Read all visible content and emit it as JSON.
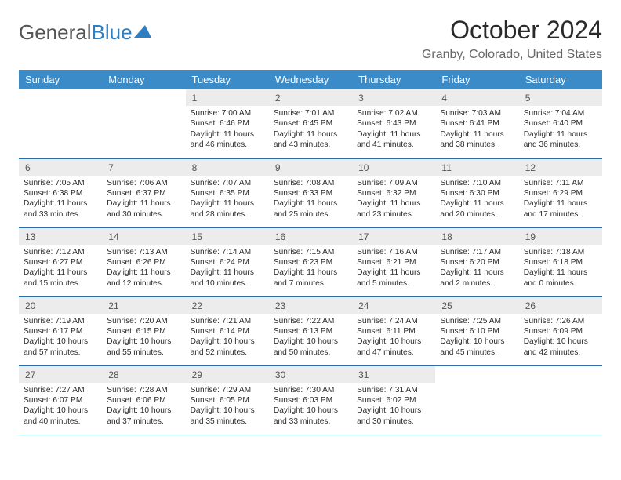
{
  "logo": {
    "part1": "General",
    "part2": "Blue"
  },
  "title": "October 2024",
  "location": "Granby, Colorado, United States",
  "colors": {
    "header_bg": "#3b8bc9",
    "header_text": "#ffffff",
    "daynum_bg": "#ececec",
    "rule": "#2d6fa8",
    "logo_gray": "#555555",
    "logo_blue": "#2d7fc1"
  },
  "weekdays": [
    "Sunday",
    "Monday",
    "Tuesday",
    "Wednesday",
    "Thursday",
    "Friday",
    "Saturday"
  ],
  "first_weekday_index": 2,
  "days": [
    {
      "n": 1,
      "sunrise": "7:00 AM",
      "sunset": "6:46 PM",
      "daylight": "11 hours and 46 minutes."
    },
    {
      "n": 2,
      "sunrise": "7:01 AM",
      "sunset": "6:45 PM",
      "daylight": "11 hours and 43 minutes."
    },
    {
      "n": 3,
      "sunrise": "7:02 AM",
      "sunset": "6:43 PM",
      "daylight": "11 hours and 41 minutes."
    },
    {
      "n": 4,
      "sunrise": "7:03 AM",
      "sunset": "6:41 PM",
      "daylight": "11 hours and 38 minutes."
    },
    {
      "n": 5,
      "sunrise": "7:04 AM",
      "sunset": "6:40 PM",
      "daylight": "11 hours and 36 minutes."
    },
    {
      "n": 6,
      "sunrise": "7:05 AM",
      "sunset": "6:38 PM",
      "daylight": "11 hours and 33 minutes."
    },
    {
      "n": 7,
      "sunrise": "7:06 AM",
      "sunset": "6:37 PM",
      "daylight": "11 hours and 30 minutes."
    },
    {
      "n": 8,
      "sunrise": "7:07 AM",
      "sunset": "6:35 PM",
      "daylight": "11 hours and 28 minutes."
    },
    {
      "n": 9,
      "sunrise": "7:08 AM",
      "sunset": "6:33 PM",
      "daylight": "11 hours and 25 minutes."
    },
    {
      "n": 10,
      "sunrise": "7:09 AM",
      "sunset": "6:32 PM",
      "daylight": "11 hours and 23 minutes."
    },
    {
      "n": 11,
      "sunrise": "7:10 AM",
      "sunset": "6:30 PM",
      "daylight": "11 hours and 20 minutes."
    },
    {
      "n": 12,
      "sunrise": "7:11 AM",
      "sunset": "6:29 PM",
      "daylight": "11 hours and 17 minutes."
    },
    {
      "n": 13,
      "sunrise": "7:12 AM",
      "sunset": "6:27 PM",
      "daylight": "11 hours and 15 minutes."
    },
    {
      "n": 14,
      "sunrise": "7:13 AM",
      "sunset": "6:26 PM",
      "daylight": "11 hours and 12 minutes."
    },
    {
      "n": 15,
      "sunrise": "7:14 AM",
      "sunset": "6:24 PM",
      "daylight": "11 hours and 10 minutes."
    },
    {
      "n": 16,
      "sunrise": "7:15 AM",
      "sunset": "6:23 PM",
      "daylight": "11 hours and 7 minutes."
    },
    {
      "n": 17,
      "sunrise": "7:16 AM",
      "sunset": "6:21 PM",
      "daylight": "11 hours and 5 minutes."
    },
    {
      "n": 18,
      "sunrise": "7:17 AM",
      "sunset": "6:20 PM",
      "daylight": "11 hours and 2 minutes."
    },
    {
      "n": 19,
      "sunrise": "7:18 AM",
      "sunset": "6:18 PM",
      "daylight": "11 hours and 0 minutes."
    },
    {
      "n": 20,
      "sunrise": "7:19 AM",
      "sunset": "6:17 PM",
      "daylight": "10 hours and 57 minutes."
    },
    {
      "n": 21,
      "sunrise": "7:20 AM",
      "sunset": "6:15 PM",
      "daylight": "10 hours and 55 minutes."
    },
    {
      "n": 22,
      "sunrise": "7:21 AM",
      "sunset": "6:14 PM",
      "daylight": "10 hours and 52 minutes."
    },
    {
      "n": 23,
      "sunrise": "7:22 AM",
      "sunset": "6:13 PM",
      "daylight": "10 hours and 50 minutes."
    },
    {
      "n": 24,
      "sunrise": "7:24 AM",
      "sunset": "6:11 PM",
      "daylight": "10 hours and 47 minutes."
    },
    {
      "n": 25,
      "sunrise": "7:25 AM",
      "sunset": "6:10 PM",
      "daylight": "10 hours and 45 minutes."
    },
    {
      "n": 26,
      "sunrise": "7:26 AM",
      "sunset": "6:09 PM",
      "daylight": "10 hours and 42 minutes."
    },
    {
      "n": 27,
      "sunrise": "7:27 AM",
      "sunset": "6:07 PM",
      "daylight": "10 hours and 40 minutes."
    },
    {
      "n": 28,
      "sunrise": "7:28 AM",
      "sunset": "6:06 PM",
      "daylight": "10 hours and 37 minutes."
    },
    {
      "n": 29,
      "sunrise": "7:29 AM",
      "sunset": "6:05 PM",
      "daylight": "10 hours and 35 minutes."
    },
    {
      "n": 30,
      "sunrise": "7:30 AM",
      "sunset": "6:03 PM",
      "daylight": "10 hours and 33 minutes."
    },
    {
      "n": 31,
      "sunrise": "7:31 AM",
      "sunset": "6:02 PM",
      "daylight": "10 hours and 30 minutes."
    }
  ]
}
